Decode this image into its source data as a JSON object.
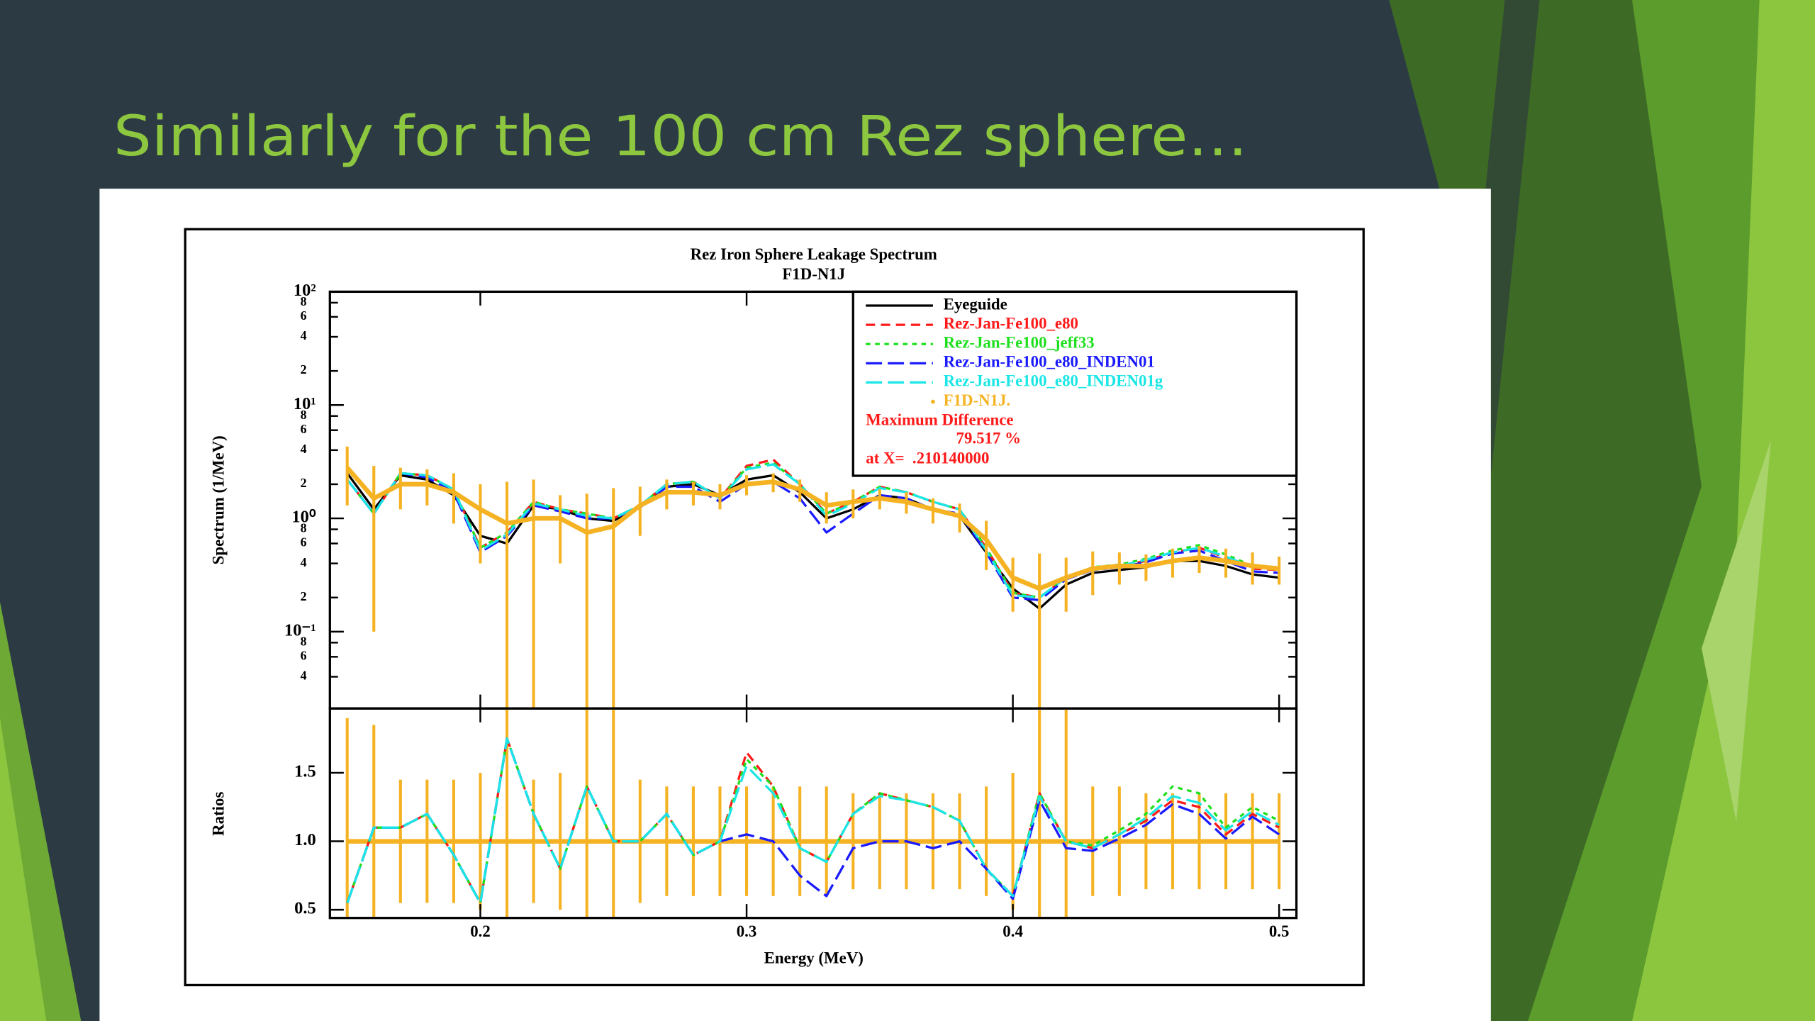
{
  "slide_title": "Similarly for the 100 cm Rez sphere…",
  "chart_data": [
    {
      "type": "line",
      "title": "Rez Iron Sphere Leakage Spectrum",
      "subtitle": "F1D-N1J",
      "y_label": "Spectrum (1/MeV)",
      "log_y": true,
      "xlim": [
        0.1435,
        0.5065
      ],
      "xticks": [
        0.2,
        0.3,
        0.4,
        0.5
      ],
      "ylim": [
        0.021,
        100
      ],
      "yticks": [
        {
          "value": 0.04,
          "label": "4"
        },
        {
          "value": 0.06,
          "label": "6"
        },
        {
          "value": 0.08,
          "label": "8"
        },
        {
          "value": 0.1,
          "label": "10⁻¹"
        },
        {
          "value": 0.2,
          "label": "2"
        },
        {
          "value": 0.4,
          "label": "4"
        },
        {
          "value": 0.6,
          "label": "6"
        },
        {
          "value": 0.8,
          "label": "8"
        },
        {
          "value": 1,
          "label": "10⁰"
        },
        2,
        4,
        6,
        8,
        {
          "value": 10,
          "label": "10¹"
        },
        {
          "value": 20,
          "label": "2"
        },
        {
          "value": 40,
          "label": "4"
        },
        {
          "value": 60,
          "label": "6"
        },
        {
          "value": 80,
          "label": "8"
        },
        {
          "value": 100,
          "label": "10²"
        }
      ],
      "legend": "upper right",
      "x": [
        0.15,
        0.16,
        0.17,
        0.18,
        0.19,
        0.2,
        0.21,
        0.22,
        0.23,
        0.24,
        0.25,
        0.26,
        0.27,
        0.28,
        0.29,
        0.3,
        0.31,
        0.32,
        0.33,
        0.34,
        0.35,
        0.36,
        0.37,
        0.38,
        0.39,
        0.4,
        0.41,
        0.42,
        0.43,
        0.44,
        0.45,
        0.46,
        0.47,
        0.48,
        0.49,
        0.5
      ],
      "series": [
        {
          "name": "Eyeguide",
          "color": "#000000",
          "line_style": "solid",
          "values": [
            2.5,
            1.2,
            2.4,
            2.2,
            1.6,
            0.7,
            0.6,
            1.3,
            1.2,
            1.0,
            0.95,
            1.3,
            1.9,
            2.0,
            1.6,
            2.2,
            2.4,
            1.7,
            1.0,
            1.2,
            1.6,
            1.5,
            1.2,
            1.05,
            0.5,
            0.24,
            0.16,
            0.26,
            0.33,
            0.35,
            0.37,
            0.42,
            0.42,
            0.38,
            0.32,
            0.3
          ]
        },
        {
          "name": "Rez-Jan-Fe100_e80",
          "color": "#ff1a1a",
          "line_style": "dashed",
          "values": [
            2.2,
            1.1,
            2.5,
            2.4,
            1.8,
            0.55,
            0.75,
            1.4,
            1.2,
            1.1,
            1.0,
            1.3,
            2.0,
            2.1,
            1.5,
            2.9,
            3.3,
            2.0,
            1.1,
            1.4,
            1.9,
            1.7,
            1.4,
            1.2,
            0.55,
            0.22,
            0.2,
            0.3,
            0.36,
            0.38,
            0.42,
            0.5,
            0.55,
            0.45,
            0.36,
            0.35
          ]
        },
        {
          "name": "Rez-Jan-Fe100_jeff33",
          "color": "#1fe01f",
          "line_style": "dotted",
          "values": [
            2.2,
            1.1,
            2.5,
            2.4,
            1.8,
            0.55,
            0.75,
            1.4,
            1.2,
            1.1,
            1.0,
            1.3,
            2.0,
            2.1,
            1.5,
            2.8,
            3.1,
            2.0,
            1.1,
            1.4,
            1.9,
            1.7,
            1.4,
            1.2,
            0.55,
            0.22,
            0.2,
            0.3,
            0.37,
            0.39,
            0.44,
            0.52,
            0.58,
            0.48,
            0.38,
            0.36
          ]
        },
        {
          "name": "Rez-Jan-Fe100_e80_INDEN01",
          "color": "#1a1aff",
          "line_style": "long-dashed",
          "values": [
            2.2,
            1.1,
            2.5,
            2.3,
            1.7,
            0.5,
            0.7,
            1.3,
            1.15,
            1.0,
            1.0,
            1.25,
            1.9,
            1.9,
            1.4,
            2.0,
            2.1,
            1.5,
            0.75,
            1.1,
            1.6,
            1.5,
            1.2,
            1.1,
            0.5,
            0.2,
            0.19,
            0.29,
            0.35,
            0.37,
            0.41,
            0.49,
            0.52,
            0.42,
            0.34,
            0.33
          ]
        },
        {
          "name": "Rez-Jan-Fe100_e80_INDEN01g",
          "color": "#1ae6e6",
          "line_style": "long-dashed",
          "values": [
            2.2,
            1.1,
            2.5,
            2.4,
            1.8,
            0.52,
            0.72,
            1.35,
            1.2,
            1.05,
            1.0,
            1.3,
            2.0,
            2.1,
            1.5,
            2.7,
            3.0,
            2.0,
            1.05,
            1.35,
            1.85,
            1.7,
            1.4,
            1.2,
            0.52,
            0.21,
            0.2,
            0.3,
            0.36,
            0.38,
            0.43,
            0.5,
            0.55,
            0.46,
            0.37,
            0.36
          ]
        },
        {
          "name": "F1D-N1J.",
          "color": "#f5b324",
          "line_style": "points",
          "values": [
            2.8,
            1.5,
            2.0,
            2.0,
            1.7,
            1.2,
            0.9,
            1.0,
            1.0,
            0.75,
            0.85,
            1.3,
            1.7,
            1.7,
            1.6,
            2.0,
            2.1,
            1.8,
            1.3,
            1.4,
            1.5,
            1.4,
            1.2,
            1.05,
            0.65,
            0.3,
            0.24,
            0.3,
            0.36,
            0.38,
            0.38,
            0.42,
            0.45,
            0.42,
            0.38,
            0.36
          ],
          "errors": [
            1.5,
            1.4,
            0.8,
            0.7,
            0.8,
            0.8,
            1.2,
            1.2,
            0.6,
            0.9,
            1.0,
            0.6,
            0.5,
            0.4,
            0.4,
            0.4,
            0.4,
            0.4,
            0.4,
            0.4,
            0.3,
            0.3,
            0.3,
            0.3,
            0.3,
            0.15,
            0.25,
            0.15,
            0.15,
            0.12,
            0.1,
            0.12,
            0.12,
            0.12,
            0.12,
            0.1
          ]
        }
      ],
      "annotations": [
        {
          "text": "Maximum Difference",
          "color": "#ff1a1a"
        },
        {
          "text": "79.517 %",
          "color": "#ff1a1a"
        },
        {
          "text": "at X=  .210140000",
          "color": "#ff1a1a"
        }
      ]
    },
    {
      "type": "line",
      "x_label": "Energy (MeV)",
      "y_label": "Ratios",
      "xlim": [
        0.1435,
        0.5065
      ],
      "xticks": [
        0.2,
        0.3,
        0.4,
        0.5
      ],
      "ylim": [
        0.44,
        1.97
      ],
      "yticks": [
        0.5,
        {
          "value": 1,
          "label": "1.0"
        },
        1.5
      ],
      "x": [
        0.15,
        0.16,
        0.17,
        0.18,
        0.19,
        0.2,
        0.21,
        0.22,
        0.23,
        0.24,
        0.25,
        0.26,
        0.27,
        0.28,
        0.29,
        0.3,
        0.31,
        0.32,
        0.33,
        0.34,
        0.35,
        0.36,
        0.37,
        0.38,
        0.39,
        0.4,
        0.41,
        0.42,
        0.43,
        0.44,
        0.45,
        0.46,
        0.47,
        0.48,
        0.49,
        0.5
      ],
      "series": [
        {
          "color": "#f5b324",
          "line_style": "points",
          "values": [
            1,
            1,
            1,
            1,
            1,
            1,
            1,
            1,
            1,
            1,
            1,
            1,
            1,
            1,
            1,
            1,
            1,
            1,
            1,
            1,
            1,
            1,
            1,
            1,
            1,
            1,
            1,
            1,
            1,
            1,
            1,
            1,
            1,
            1,
            1,
            1
          ],
          "errors": [
            0.9,
            0.85,
            0.45,
            0.45,
            0.45,
            0.5,
            1.5,
            0.45,
            0.5,
            1.5,
            1.5,
            0.45,
            0.4,
            0.4,
            0.4,
            0.4,
            0.4,
            0.4,
            0.4,
            0.35,
            0.35,
            0.35,
            0.35,
            0.35,
            0.4,
            0.5,
            1.5,
            1.5,
            0.4,
            0.4,
            0.35,
            0.35,
            0.35,
            0.35,
            0.35,
            0.35
          ]
        },
        {
          "color": "#ff1a1a",
          "line_style": "dashed",
          "values": [
            0.55,
            1.1,
            1.1,
            1.2,
            0.9,
            0.55,
            1.75,
            1.2,
            0.8,
            1.4,
            1.0,
            1.0,
            1.2,
            0.9,
            1.0,
            1.65,
            1.4,
            0.95,
            0.85,
            1.2,
            1.35,
            1.3,
            1.25,
            1.15,
            0.8,
            0.6,
            1.35,
            1.0,
            0.95,
            1.05,
            1.15,
            1.3,
            1.25,
            1.05,
            1.2,
            1.1
          ]
        },
        {
          "color": "#1fe01f",
          "line_style": "dotted",
          "values": [
            0.55,
            1.1,
            1.1,
            1.2,
            0.9,
            0.55,
            1.75,
            1.2,
            0.8,
            1.4,
            1.0,
            1.0,
            1.2,
            0.9,
            1.0,
            1.6,
            1.4,
            0.95,
            0.85,
            1.2,
            1.35,
            1.3,
            1.25,
            1.15,
            0.8,
            0.6,
            1.35,
            1.0,
            0.97,
            1.08,
            1.2,
            1.4,
            1.35,
            1.1,
            1.25,
            1.15
          ]
        },
        {
          "color": "#1a1aff",
          "line_style": "long-dashed",
          "values": [
            0.55,
            1.1,
            1.1,
            1.2,
            0.9,
            0.55,
            1.75,
            1.2,
            0.8,
            1.4,
            1.0,
            1.0,
            1.2,
            0.9,
            1.0,
            1.05,
            1.0,
            0.75,
            0.6,
            0.95,
            1.0,
            1.0,
            0.95,
            1.0,
            0.8,
            0.58,
            1.3,
            0.95,
            0.93,
            1.02,
            1.12,
            1.27,
            1.2,
            1.02,
            1.18,
            1.05
          ]
        },
        {
          "color": "#1ae6e6",
          "line_style": "long-dashed",
          "values": [
            0.55,
            1.1,
            1.1,
            1.2,
            0.9,
            0.55,
            1.75,
            1.2,
            0.8,
            1.4,
            1.0,
            1.0,
            1.2,
            0.9,
            1.0,
            1.55,
            1.35,
            0.95,
            0.85,
            1.2,
            1.33,
            1.3,
            1.25,
            1.15,
            0.8,
            0.6,
            1.33,
            1.0,
            0.95,
            1.05,
            1.17,
            1.33,
            1.28,
            1.08,
            1.22,
            1.12
          ]
        }
      ]
    }
  ]
}
